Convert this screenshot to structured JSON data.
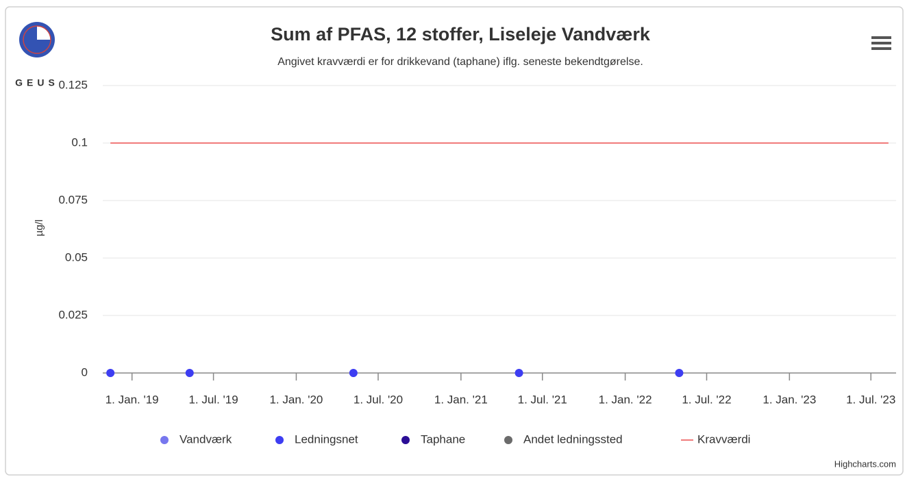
{
  "logo_text": "GEUS",
  "credits": "Highcharts.com",
  "chart_data": {
    "type": "scatter",
    "title": "Sum af PFAS, 12 stoffer, Liseleje Vandværk",
    "subtitle": "Angivet kravværdi er for drikkevand (taphane) iflg. seneste bekendtgørelse.",
    "y_label": "µg/l",
    "xlim": [
      "2018-10-28",
      "2023-08-26"
    ],
    "xticks": [
      {
        "value": "2019-01-01",
        "label": "1. Jan. '19"
      },
      {
        "value": "2019-07-01",
        "label": "1. Jul. '19"
      },
      {
        "value": "2020-01-01",
        "label": "1. Jan. '20"
      },
      {
        "value": "2020-07-01",
        "label": "1. Jul. '20"
      },
      {
        "value": "2021-01-01",
        "label": "1. Jan. '21"
      },
      {
        "value": "2021-07-01",
        "label": "1. Jul. '21"
      },
      {
        "value": "2022-01-01",
        "label": "1. Jan. '22"
      },
      {
        "value": "2022-07-01",
        "label": "1. Jul. '22"
      },
      {
        "value": "2023-01-01",
        "label": "1. Jan. '23"
      },
      {
        "value": "2023-07-01",
        "label": "1. Jul. '23"
      }
    ],
    "ylim": [
      0,
      0.125
    ],
    "yticks": [
      0,
      0.025,
      0.05,
      0.075,
      0.1,
      0.125
    ],
    "grid": true,
    "legend": "bottom",
    "series": [
      {
        "name": "Vandværk",
        "color": "#7777ee",
        "kind": "scatter",
        "x": [],
        "values": []
      },
      {
        "name": "Ledningsnet",
        "color": "#3d3df2",
        "kind": "scatter",
        "x": [
          "2018-11-14",
          "2019-05-09",
          "2020-05-07",
          "2021-05-10",
          "2022-05-01"
        ],
        "values": [
          0,
          0,
          0,
          0,
          0
        ]
      },
      {
        "name": "Taphane",
        "color": "#2b0e96",
        "kind": "scatter",
        "x": [],
        "values": []
      },
      {
        "name": "Andet ledningssted",
        "color": "#6b6b6b",
        "kind": "scatter",
        "x": [],
        "values": []
      },
      {
        "name": "Kravværdi",
        "color": "#f07a7a",
        "kind": "line",
        "x": [
          "2018-11-14",
          "2023-08-09"
        ],
        "values": [
          0.1,
          0.1
        ]
      }
    ]
  }
}
